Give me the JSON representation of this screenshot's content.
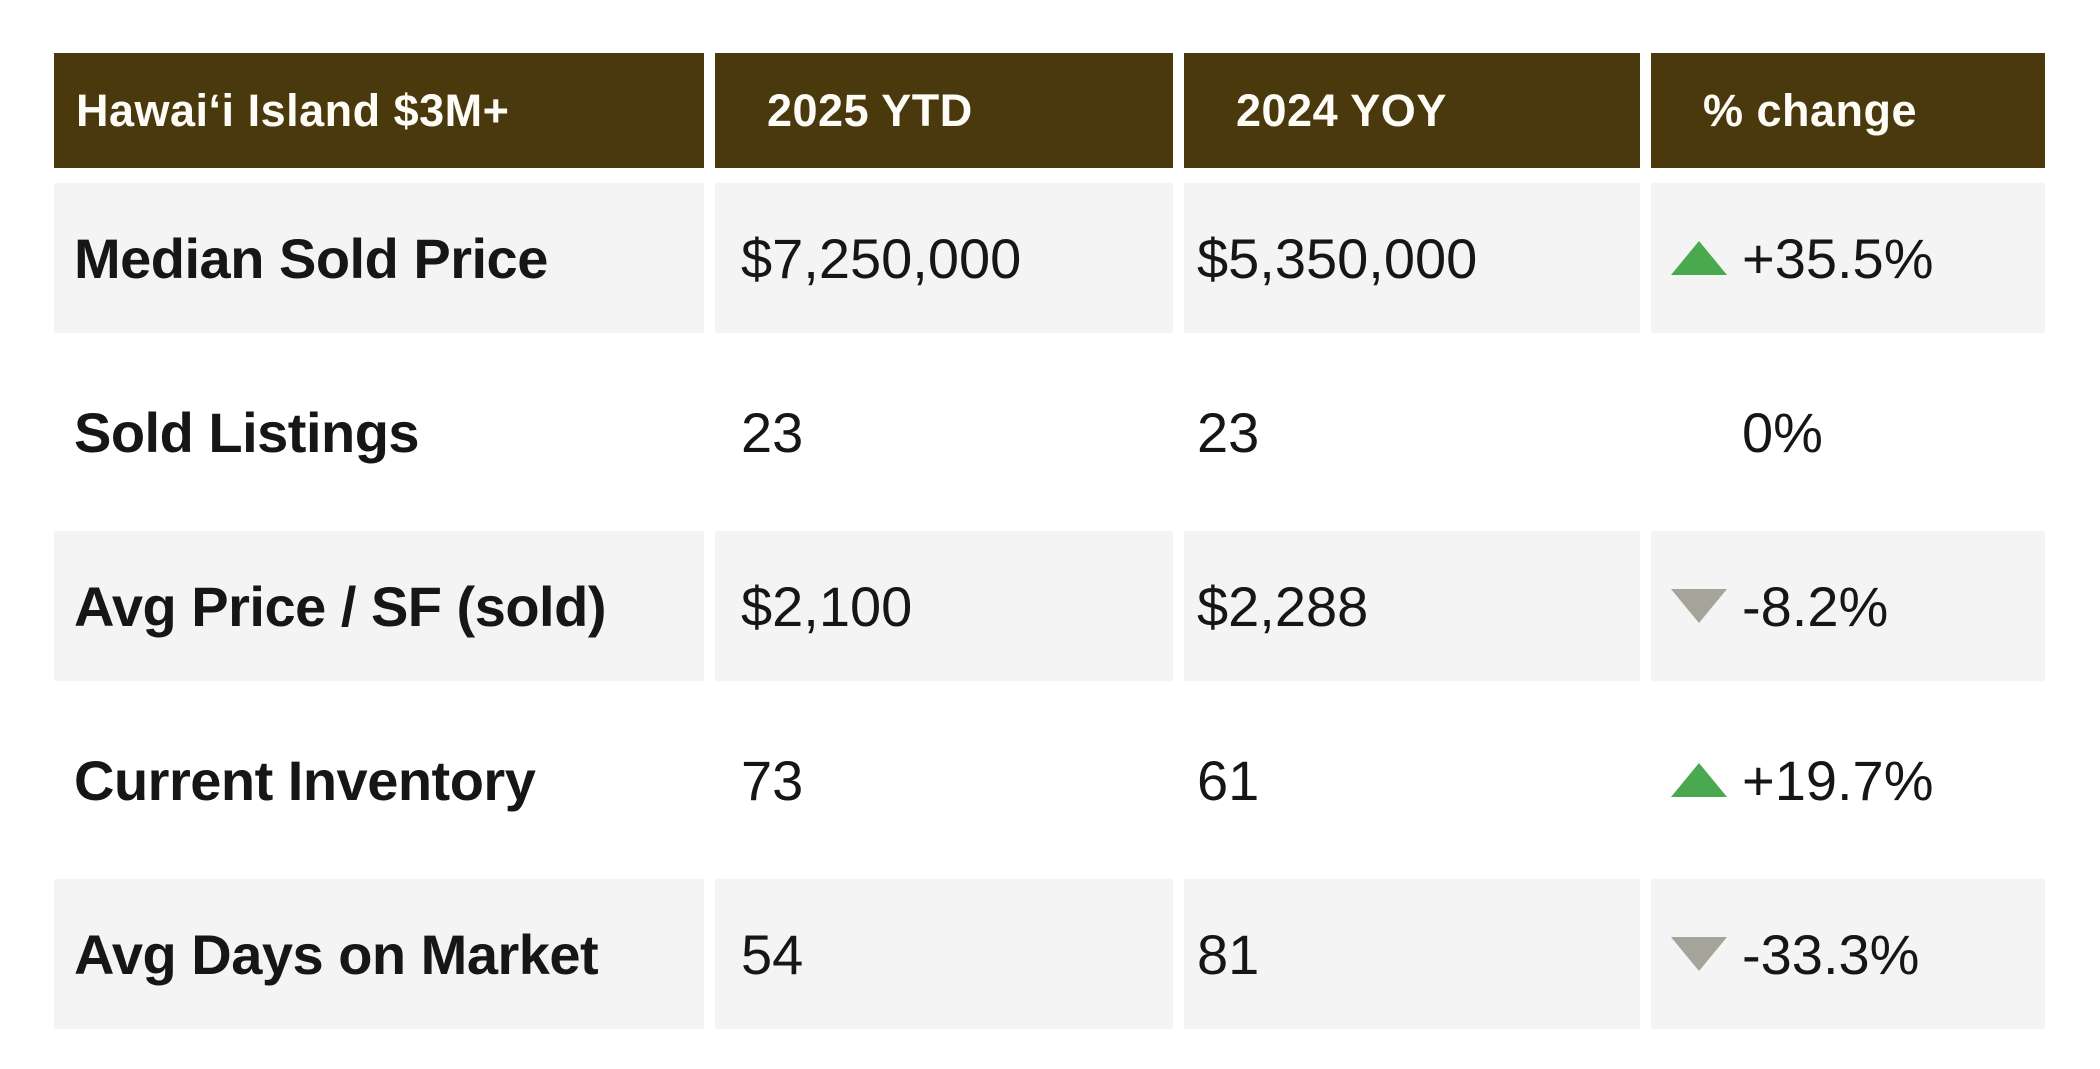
{
  "colors": {
    "header_bg": "#4a390c",
    "header_text": "#fdfcf6",
    "row_alt_bg": "#f3f4f3",
    "body_text": "#161616",
    "up_arrow": "#4aa84f",
    "down_arrow": "#a5a49a",
    "page_bg": "#ffffff"
  },
  "table": {
    "columns": [
      {
        "label": "Hawaiʻi Island $3M+"
      },
      {
        "label": "2025 YTD"
      },
      {
        "label": "2024 YOY"
      },
      {
        "label": "% change"
      }
    ],
    "rows": [
      {
        "label": "Median Sold Price",
        "ytd": "$7,250,000",
        "yoy": "$5,350,000",
        "change": {
          "direction": "up",
          "value": "+35.5%"
        }
      },
      {
        "label": "Sold Listings",
        "ytd": "23",
        "yoy": "23",
        "change": {
          "direction": "flat",
          "value": "0%"
        }
      },
      {
        "label": "Avg Price / SF (sold)",
        "ytd": "$2,100",
        "yoy": "$2,288",
        "change": {
          "direction": "down",
          "value": "-8.2%"
        }
      },
      {
        "label": "Current Inventory",
        "ytd": "73",
        "yoy": "61",
        "change": {
          "direction": "up",
          "value": "+19.7%"
        }
      },
      {
        "label": "Avg Days on Market",
        "ytd": "54",
        "yoy": "81",
        "change": {
          "direction": "down",
          "value": "-33.3%"
        }
      }
    ]
  },
  "chart_data": {
    "type": "table",
    "title": "Hawaiʻi Island $3M+",
    "columns": [
      "Hawaiʻi Island $3M+",
      "2025 YTD",
      "2024 YOY",
      "% change"
    ],
    "rows": [
      [
        "Median Sold Price",
        "$7,250,000",
        "$5,350,000",
        "+35.5%"
      ],
      [
        "Sold Listings",
        "23",
        "23",
        "0%"
      ],
      [
        "Avg Price / SF (sold)",
        "$2,100",
        "$2,288",
        "-8.2%"
      ],
      [
        "Current Inventory",
        "73",
        "61",
        "+19.7%"
      ],
      [
        "Avg Days on Market",
        "54",
        "81",
        "-33.3%"
      ]
    ],
    "notes": {
      "ytd_2025": [
        7250000,
        23,
        2100,
        73,
        54
      ],
      "yoy_2024": [
        5350000,
        23,
        2288,
        61,
        81
      ],
      "pct_change": [
        35.5,
        0,
        -8.2,
        19.7,
        -33.3
      ]
    }
  }
}
